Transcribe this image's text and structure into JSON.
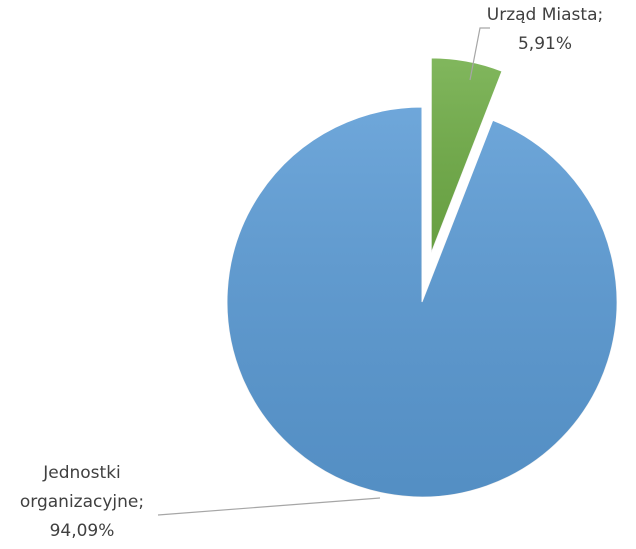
{
  "chart_data": {
    "type": "pie",
    "categories": [
      "Urząd Miasta;",
      "Jednostki organizacyjne;"
    ],
    "values": [
      5.91,
      94.09
    ],
    "value_labels": [
      "5,91%",
      "94,09%"
    ],
    "colors": [
      "#70ad47",
      "#5b9bd5"
    ]
  }
}
